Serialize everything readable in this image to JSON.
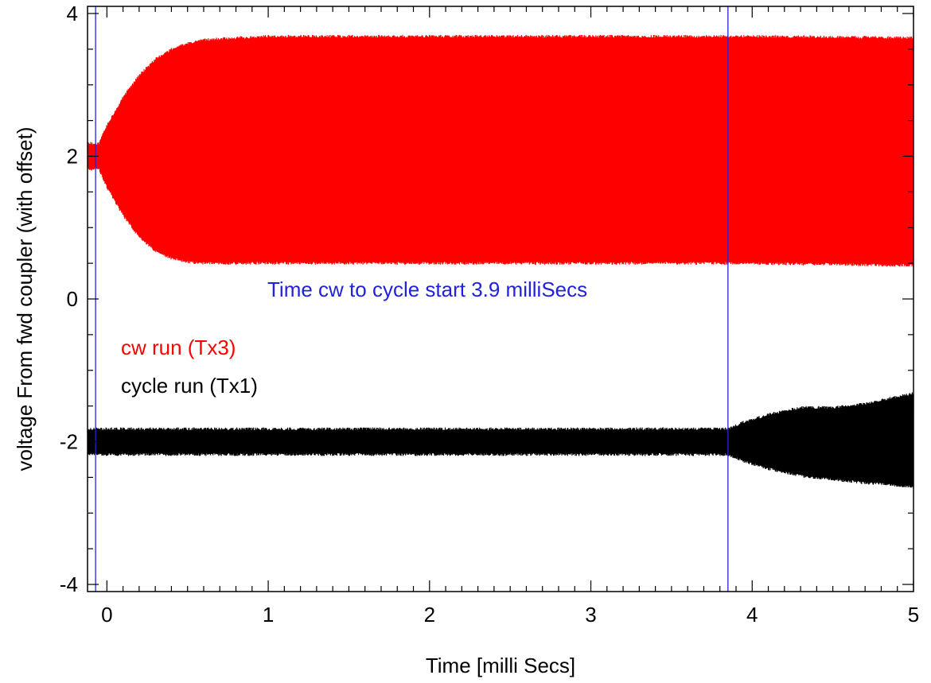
{
  "chart_data": {
    "type": "line",
    "title": "",
    "xlabel": "Time [milli Secs]",
    "ylabel": "voltage From fwd coupler (with offset)",
    "xlim": [
      -0.12,
      5.0
    ],
    "ylim": [
      -4.1,
      4.1
    ],
    "xticks": [
      0,
      1,
      2,
      3,
      4,
      5
    ],
    "yticks": [
      -4,
      -2,
      0,
      2,
      4
    ],
    "xtick_labels": [
      "0",
      "1",
      "2",
      "3",
      "4",
      "5"
    ],
    "ytick_labels": [
      "-4",
      "-2",
      "0",
      "2",
      "4"
    ],
    "grid": false,
    "series": [
      {
        "name": "cw run (Tx3)",
        "color": "#ff0000",
        "offset": 2.0,
        "envelope_x": [
          -0.12,
          -0.05,
          0.0,
          0.1,
          0.2,
          0.3,
          0.4,
          0.5,
          0.6,
          0.8,
          1.0,
          2.0,
          3.0,
          4.0,
          5.0
        ],
        "envelope_upper": [
          2.2,
          2.2,
          2.45,
          2.85,
          3.15,
          3.38,
          3.52,
          3.6,
          3.65,
          3.68,
          3.7,
          3.7,
          3.7,
          3.7,
          3.68
        ],
        "envelope_lower": [
          1.8,
          1.8,
          1.55,
          1.15,
          0.85,
          0.65,
          0.55,
          0.5,
          0.48,
          0.48,
          0.48,
          0.48,
          0.48,
          0.48,
          0.45
        ]
      },
      {
        "name": "cycle run (Tx1)",
        "color": "#000000",
        "offset": -2.0,
        "envelope_x": [
          -0.12,
          1.0,
          2.0,
          3.0,
          3.85,
          3.95,
          4.1,
          4.3,
          4.5,
          4.7,
          5.0
        ],
        "envelope_upper": [
          -1.8,
          -1.8,
          -1.8,
          -1.8,
          -1.8,
          -1.7,
          -1.6,
          -1.5,
          -1.5,
          -1.45,
          -1.3
        ],
        "envelope_lower": [
          -2.2,
          -2.2,
          -2.2,
          -2.2,
          -2.2,
          -2.3,
          -2.4,
          -2.5,
          -2.55,
          -2.6,
          -2.65
        ]
      }
    ],
    "vlines": [
      {
        "x": -0.07,
        "color": "#2222dd"
      },
      {
        "x": 3.85,
        "color": "#2222dd"
      }
    ],
    "annotations": [
      {
        "text": "Time cw to cycle start   3.9 milliSecs",
        "color": "#2222dd"
      },
      {
        "text": "cw run (Tx3)",
        "color": "#ff0000"
      },
      {
        "text": "cycle run (Tx1)",
        "color": "#000000"
      }
    ]
  }
}
